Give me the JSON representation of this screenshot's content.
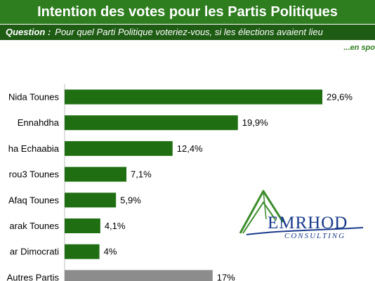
{
  "header": {
    "title": "Intention des votes pour les Partis Politiques",
    "question_label": "Question :",
    "question_text": "Pour quel Parti Politique voteriez-vous, si les élections avaient lieu",
    "note": "...en spo"
  },
  "colors": {
    "title_bg": "#2e7d1e",
    "question_bg": "#1e5c14",
    "bar_primary": "#1f6f12",
    "bar_other": "#8c8c8c",
    "logo_blue": "#1a3a8c",
    "logo_green": "#3c8c2c"
  },
  "logo": {
    "wordmark": "EMRHOD",
    "tagline": "CONSULTING"
  },
  "chart_data": {
    "type": "bar",
    "orientation": "horizontal",
    "categories": [
      "Nida Tounes",
      "Ennahdha",
      "ha Echaabia",
      "rou3 Tounes",
      "Afaq Tounes",
      "arak Tounes",
      "ar Dimocrati",
      "Autres Partis"
    ],
    "values": [
      29.6,
      19.9,
      12.4,
      7.1,
      5.9,
      4.1,
      4,
      17
    ],
    "data_labels": [
      "29,6%",
      "19,9%",
      "12,4%",
      "7,1%",
      "5,9%",
      "4,1%",
      "4%",
      "17%"
    ],
    "grid": false
  }
}
